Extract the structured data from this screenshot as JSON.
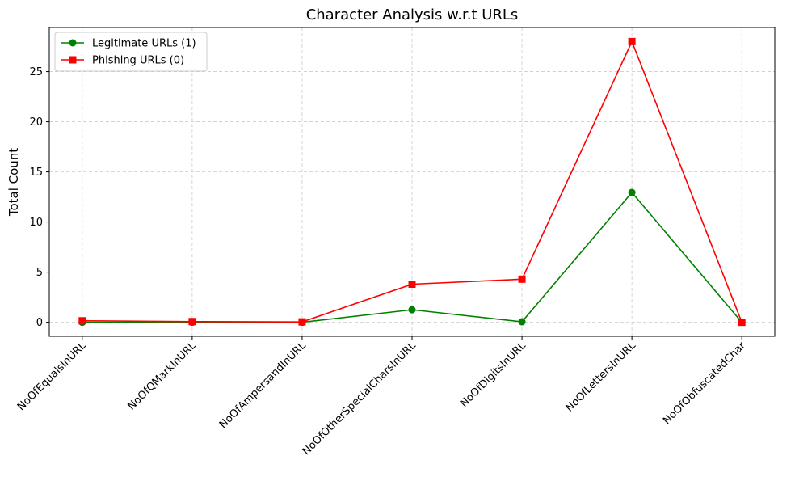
{
  "chart_data": {
    "type": "line",
    "title": "Character Analysis w.r.t URLs",
    "xlabel": "",
    "ylabel": "Total Count",
    "categories": [
      "NoOfEqualsInURL",
      "NoOfQMarkInURL",
      "NoOfAmpersandInURL",
      "NoOfOtherSpecialCharsInURL",
      "NoOfDigitsInURL",
      "NoOfLettersInURL",
      "NoOfObfuscatedChar"
    ],
    "series": [
      {
        "name": "Legitimate URLs (1)",
        "color": "#008000",
        "marker": "circle",
        "values": [
          0.0,
          0.0,
          0.0,
          1.25,
          0.05,
          12.95,
          0.0
        ]
      },
      {
        "name": "Phishing URLs (0)",
        "color": "#ff0000",
        "marker": "square",
        "values": [
          0.15,
          0.07,
          0.04,
          3.8,
          4.3,
          28.0,
          0.0
        ]
      }
    ],
    "ylim": [
      -1.4,
      29.4
    ],
    "yticks": [
      0,
      5,
      10,
      15,
      20,
      25
    ],
    "grid": true,
    "legend_position": "top-left"
  }
}
